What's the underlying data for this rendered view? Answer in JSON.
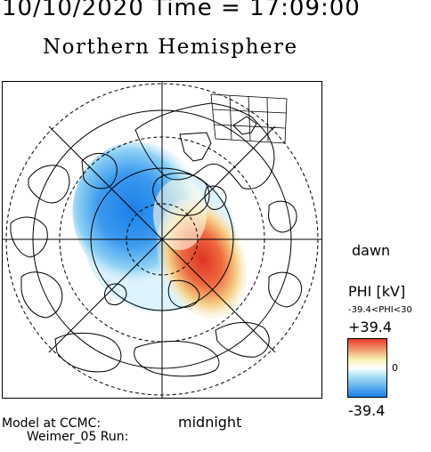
{
  "header": {
    "timestamp": "10/10/2020 Time = 17:09:00",
    "title": "Northern Hemisphere"
  },
  "map": {
    "projection": "polar",
    "orientation_labels": {
      "dawn": "dawn",
      "midnight": "midnight"
    }
  },
  "colorbar": {
    "title": "PHI [kV]",
    "range_text": "-39.4<PHI<30",
    "max_label": "+39.4",
    "zero_label": "0",
    "min_label": "-39.4",
    "colors": {
      "negative_strong": "#1b7fe8",
      "negative_light": "#a8e0f5",
      "neutral": "#ffffff",
      "positive_light": "#f7f0b0",
      "positive_strong": "#e83a2a"
    }
  },
  "footer": {
    "model_line1": "Model at CCMC:",
    "model_line2": "Weimer_05 Run:"
  }
}
